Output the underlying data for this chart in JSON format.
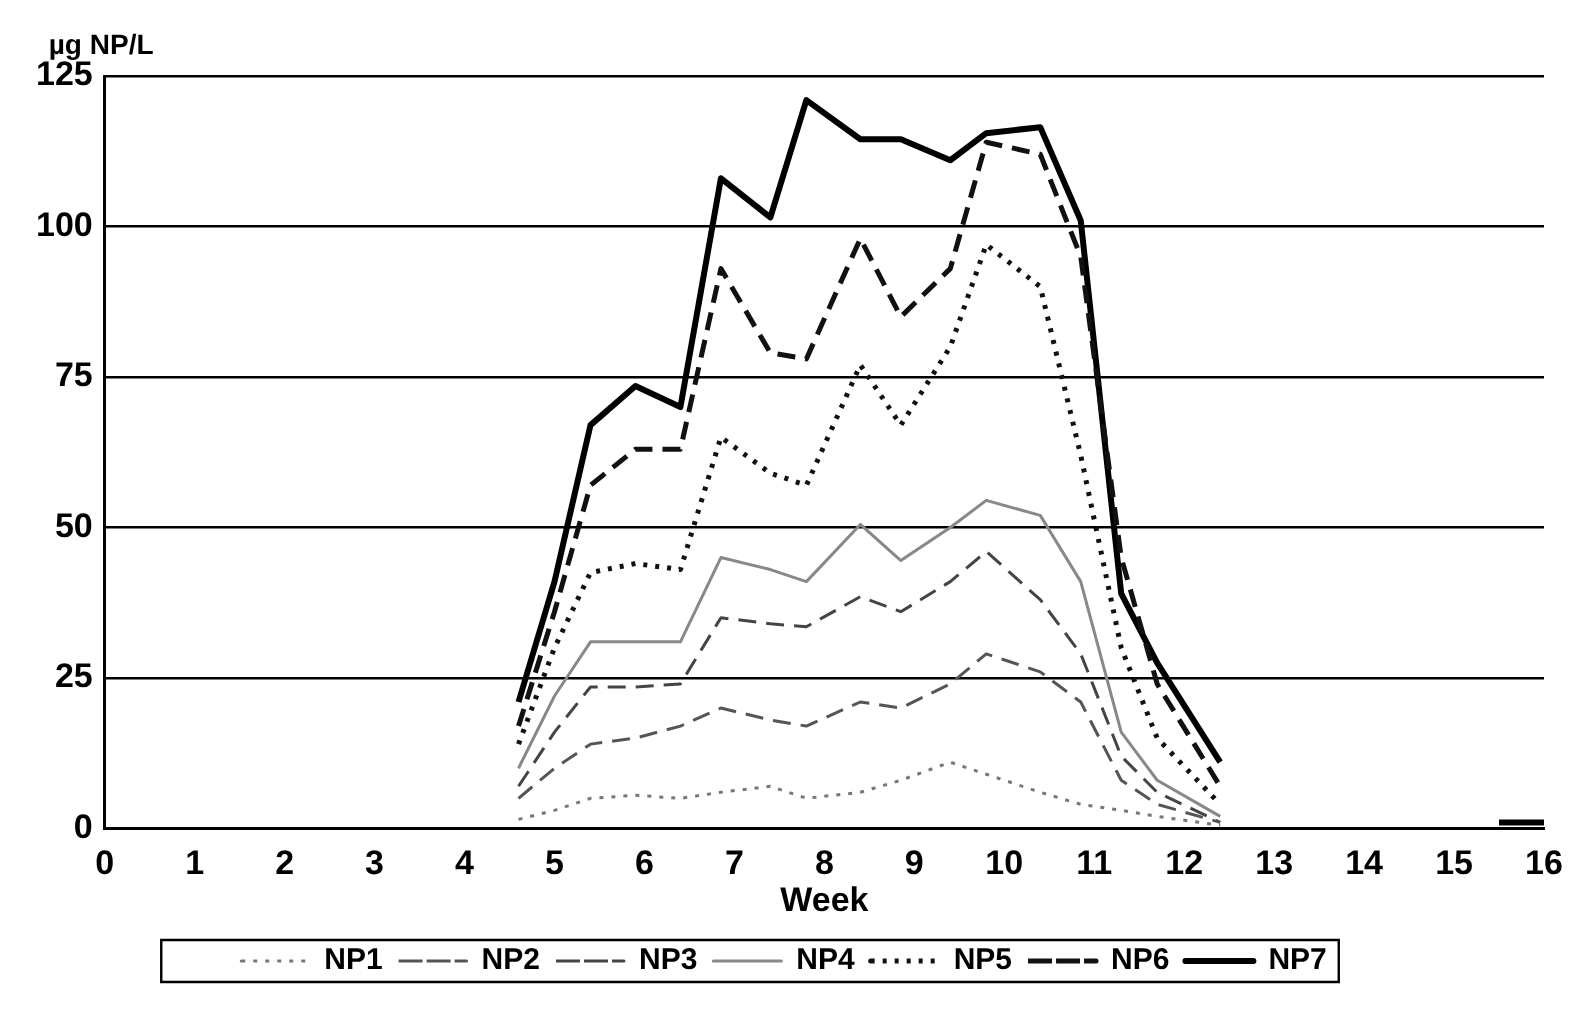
{
  "chart_data": {
    "type": "line",
    "ylabel": "µg NP/L",
    "xlabel": "Week",
    "x": [
      4.6,
      5.0,
      5.4,
      5.9,
      6.4,
      6.85,
      7.4,
      7.8,
      8.4,
      8.85,
      9.4,
      9.8,
      10.4,
      10.85,
      11.3,
      11.7,
      12.4
    ],
    "series": [
      {
        "name": "NP1",
        "color": "#777777",
        "line_style": "dotted",
        "values": [
          1.5,
          3,
          5,
          5.5,
          5,
          6,
          7,
          5,
          6,
          8,
          11,
          9,
          6,
          4,
          3,
          2,
          0.5
        ]
      },
      {
        "name": "NP2",
        "color": "#555555",
        "line_style": "dashed",
        "values": [
          5,
          10,
          14,
          15,
          17,
          20,
          18,
          17,
          21,
          20,
          24,
          29,
          26,
          21,
          8,
          4,
          1
        ]
      },
      {
        "name": "NP3",
        "color": "#444444",
        "line_style": "dashed",
        "values": [
          7,
          16,
          23.5,
          23.5,
          24,
          35,
          34,
          33.5,
          38.5,
          36,
          41,
          46,
          38,
          29,
          12,
          6,
          1
        ]
      },
      {
        "name": "NP4",
        "color": "#888888",
        "line_style": "solid",
        "values": [
          10,
          22,
          31,
          31,
          31,
          45,
          43,
          41,
          50.5,
          44.5,
          50,
          54.5,
          52,
          41,
          16,
          8,
          2
        ]
      },
      {
        "name": "NP5",
        "color": "#111111",
        "line_style": "dotted",
        "values": [
          14,
          30,
          42.5,
          44,
          43,
          65,
          59,
          57,
          77,
          67,
          80,
          97,
          90,
          62,
          30,
          15,
          4
        ]
      },
      {
        "name": "NP6",
        "color": "#111111",
        "line_style": "dashed",
        "values": [
          17,
          36,
          57,
          63,
          63,
          93,
          79,
          78,
          98,
          85,
          93,
          114,
          112,
          95,
          45,
          24,
          7
        ]
      },
      {
        "name": "NP7",
        "color": "#000000",
        "line_style": "solid",
        "x": [
          4.6,
          5.0,
          5.4,
          5.9,
          6.4,
          6.85,
          7.4,
          7.8,
          8.4,
          8.85,
          9.4,
          9.8,
          10.4,
          10.85,
          11.3,
          11.7,
          12.4,
          14,
          15.5,
          16
        ],
        "values": [
          21,
          41,
          67,
          73.5,
          70,
          108,
          101.5,
          121,
          114.5,
          114.5,
          111,
          115.5,
          116.5,
          101,
          39,
          27.5,
          11,
          null,
          1,
          1
        ]
      }
    ],
    "xlim": [
      0,
      16
    ],
    "xticks": [
      0,
      1,
      2,
      3,
      4,
      5,
      6,
      7,
      8,
      9,
      10,
      11,
      12,
      13,
      14,
      15,
      16
    ],
    "ylim": [
      0,
      125
    ],
    "yticks": [
      0,
      25,
      50,
      75,
      100,
      125
    ],
    "grid": "y",
    "legend": "bottom",
    "marker": "none"
  }
}
